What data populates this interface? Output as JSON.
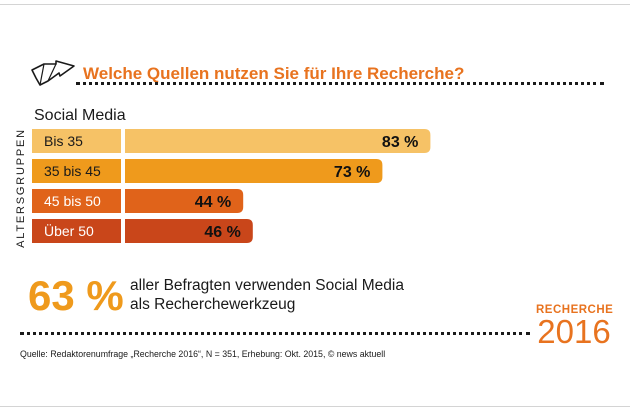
{
  "title": "Welche Quellen nutzen Sie für Ihre Recherche?",
  "icons": {
    "header": "cursor-arrow-icon"
  },
  "colors": {
    "title": "#e8731f",
    "highlight": "#ef9a1c",
    "bars": [
      "#f6c266",
      "#ef9a1c",
      "#e0631a",
      "#c9461a"
    ]
  },
  "chart_data": {
    "type": "bar",
    "orientation": "horizontal",
    "category": "Social Media",
    "axis_label": "ALTERSGRUPPEN",
    "categories": [
      "Bis 35",
      "35 bis 45",
      "45 bis 50",
      "Über 50"
    ],
    "values": [
      83,
      73,
      44,
      46
    ],
    "value_labels": [
      "83 %",
      "73 %",
      "44 %",
      "46 %"
    ],
    "unit": "%",
    "xlim": [
      0,
      100
    ]
  },
  "footnote": {
    "value": "63 %",
    "line1": "aller Befragten verwenden Social Media",
    "line2": "als Recherchewerkzeug"
  },
  "logo": {
    "word": "RECHERCHE",
    "year": "2016"
  },
  "source": "Quelle: Redaktorenumfrage „Recherche 2016“, N = 351, Erhebung: Okt. 2015, © news aktuell"
}
